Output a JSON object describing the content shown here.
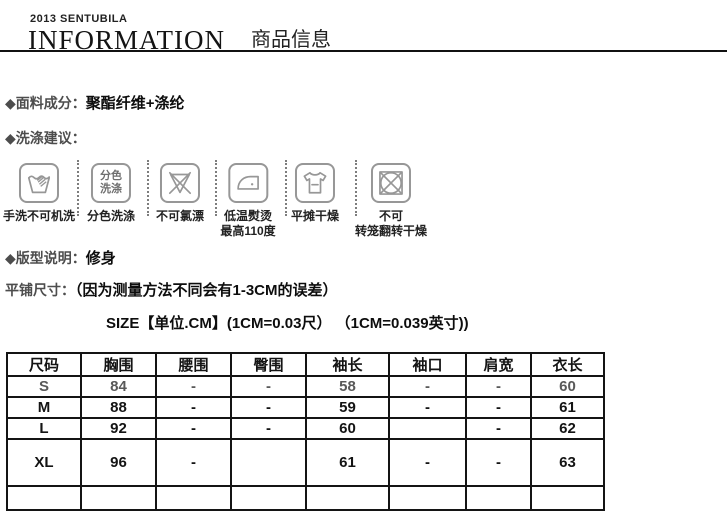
{
  "header": {
    "brand": "2013 SENTUBILA",
    "title_en": "INFORMATION",
    "title_zh": "商品信息"
  },
  "fabric": {
    "label": "◆面料成分：",
    "value": "聚酯纤维+涤纶"
  },
  "washing": {
    "label": "◆洗涤建议：",
    "icons": [
      {
        "name": "hand-wash-icon",
        "glyph": "handwash",
        "label_lines": [
          "手洗不可机洗"
        ]
      },
      {
        "name": "separate-colors-icon",
        "glyph": "boxtext",
        "box_text_lines": [
          "分色",
          "洗涤"
        ],
        "label_lines": [
          "分色洗涤"
        ]
      },
      {
        "name": "no-bleach-icon",
        "glyph": "nobleach",
        "label_lines": [
          "不可氯漂"
        ]
      },
      {
        "name": "low-iron-icon",
        "glyph": "iron",
        "label_lines": [
          "低温熨烫",
          "最高110度"
        ]
      },
      {
        "name": "flat-dry-icon",
        "glyph": "flatdry",
        "label_lines": [
          "平摊干燥"
        ]
      },
      {
        "name": "no-tumble-dry-icon",
        "glyph": "notumble",
        "label_lines": [
          "不可",
          "转笼翻转干燥"
        ]
      }
    ]
  },
  "pattern": {
    "label": "◆版型说明：",
    "value": "修身"
  },
  "flat_size": {
    "label": "平铺尺寸：",
    "note": "（因为测量方法不同会有1-3CM的误差）"
  },
  "size_title": "SIZE【单位.CM】(1CM=0.03尺） （1CM=0.039英寸))",
  "size_table": {
    "headers": [
      "尺码",
      "胸围",
      "腰围",
      "臀围",
      "袖长",
      "袖口",
      "肩宽",
      "衣长"
    ],
    "rows": [
      {
        "cells": [
          "S",
          "84",
          "-",
          "-",
          "58",
          "-",
          "-",
          "60"
        ],
        "muted": true
      },
      {
        "cells": [
          "M",
          "88",
          "-",
          "-",
          "59",
          "-",
          "-",
          "61"
        ]
      },
      {
        "cells": [
          "L",
          "92",
          "-",
          "-",
          "60",
          "",
          "-",
          "62"
        ]
      },
      {
        "cells": [
          "XL",
          "96",
          "-",
          "",
          "61",
          "-",
          "-",
          "63"
        ],
        "tall": true
      },
      {
        "cells": [
          "",
          "",
          "",
          "",
          "",
          "",
          "",
          ""
        ],
        "empty": true
      }
    ]
  },
  "colors": {
    "accent_text": "#4d4d4d",
    "body_text": "#0d0d0d",
    "icon_stroke": "#979797",
    "table_border": "#141414"
  }
}
